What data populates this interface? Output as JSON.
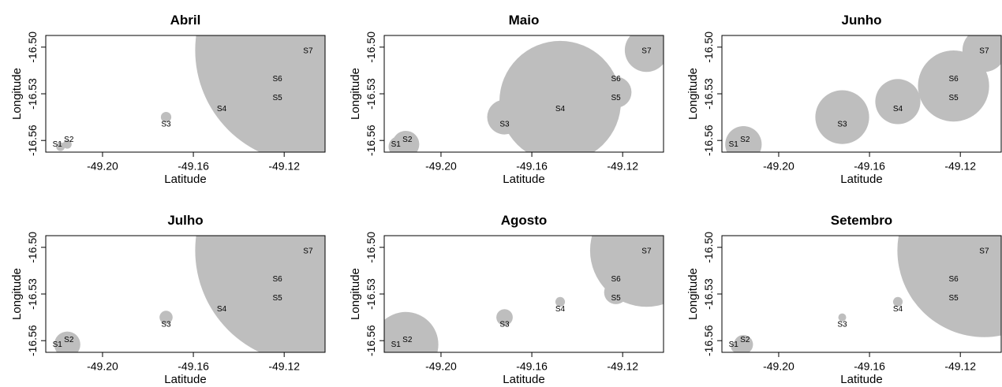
{
  "chart_data": {
    "type": "scatter",
    "subtype": "bubble",
    "xlabel": "Latitude",
    "ylabel": "Longitude",
    "xlim": [
      -49.225,
      -49.102
    ],
    "ylim": [
      -16.5675,
      -16.4925
    ],
    "xticks": [
      -49.2,
      -49.16,
      -49.12
    ],
    "xtick_labels": [
      "-49.20",
      "-49.16",
      "-49.12"
    ],
    "yticks": [
      -16.5,
      -16.53,
      -16.56
    ],
    "ytick_labels": [
      "-16.50",
      "-16.53",
      "-16.56"
    ],
    "sites": [
      {
        "label": "S1",
        "x": -49.2185,
        "y": -16.564
      },
      {
        "label": "S2",
        "x": -49.2155,
        "y": -16.5625
      },
      {
        "label": "S3",
        "x": -49.172,
        "y": -16.545
      },
      {
        "label": "S4",
        "x": -49.1475,
        "y": -16.535
      },
      {
        "label": "S5",
        "x": -49.123,
        "y": -16.529
      },
      {
        "label": "S6",
        "x": -49.123,
        "y": -16.525
      },
      {
        "label": "S7",
        "x": -49.1095,
        "y": -16.502
      }
    ],
    "bubble_color": "#bebebe",
    "panels": [
      {
        "title": "Abril",
        "values": [
          1.0,
          1.0,
          1.2,
          1.1,
          1.2,
          0,
          26
        ]
      },
      {
        "title": "Maio",
        "values": [
          2.4,
          3.1,
          4.0,
          14,
          3.6,
          2.2,
          5.0
        ]
      },
      {
        "title": "Junho",
        "values": [
          2.0,
          4.2,
          6.2,
          5.2,
          1.6,
          8.2,
          5.0
        ]
      },
      {
        "title": "Julho",
        "values": [
          1.3,
          3.0,
          1.5,
          1.1,
          1.1,
          0,
          26
        ]
      },
      {
        "title": "Agosto",
        "values": [
          1.0,
          7.5,
          1.9,
          1.1,
          2.7,
          2.3,
          13
        ]
      },
      {
        "title": "Setembro",
        "values": [
          1.3,
          2.2,
          0.9,
          1.1,
          3.0,
          4.3,
          20
        ]
      }
    ]
  }
}
